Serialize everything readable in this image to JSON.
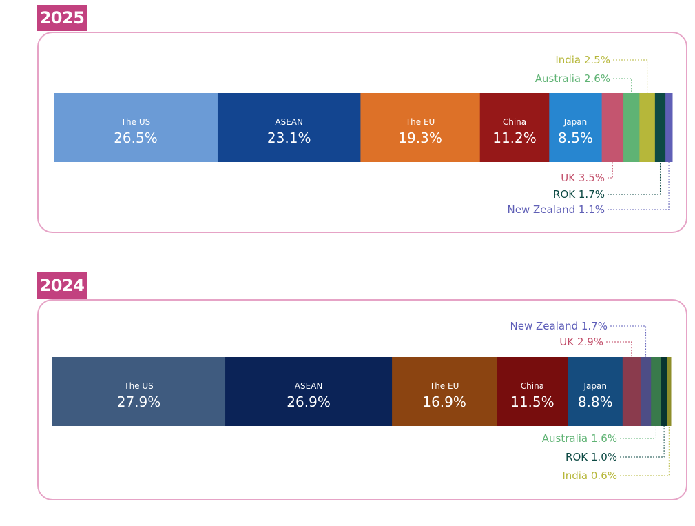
{
  "colors": {
    "accent": "#c2417f",
    "border": "#e6a3c6"
  },
  "chart_data": [
    {
      "type": "bar",
      "title": "2025",
      "stacked": true,
      "orientation": "horizontal",
      "unit": "%",
      "series": [
        {
          "name": "The US",
          "value": 26.5,
          "color": "#6b9bd6"
        },
        {
          "name": "ASEAN",
          "value": 23.1,
          "color": "#134590"
        },
        {
          "name": "The EU",
          "value": 19.3,
          "color": "#dd7128"
        },
        {
          "name": "China",
          "value": 11.2,
          "color": "#961818"
        },
        {
          "name": "Japan",
          "value": 8.5,
          "color": "#2786d0"
        },
        {
          "name": "UK",
          "value": 3.5,
          "color": "#c4556f"
        },
        {
          "name": "Australia",
          "value": 2.6,
          "color": "#5fb374"
        },
        {
          "name": "India",
          "value": 2.5,
          "color": "#b6b73a"
        },
        {
          "name": "ROK",
          "value": 1.7,
          "color": "#0d4a44"
        },
        {
          "name": "New Zealand",
          "value": 1.1,
          "color": "#5f5fb6"
        }
      ]
    },
    {
      "type": "bar",
      "title": "2024",
      "stacked": true,
      "orientation": "horizontal",
      "unit": "%",
      "series": [
        {
          "name": "The US",
          "value": 27.9,
          "color": "#3f5b7f"
        },
        {
          "name": "ASEAN",
          "value": 26.9,
          "color": "#0b2357"
        },
        {
          "name": "The EU",
          "value": 16.9,
          "color": "#8b4411"
        },
        {
          "name": "China",
          "value": 11.5,
          "color": "#770d0d"
        },
        {
          "name": "Japan",
          "value": 8.8,
          "color": "#154c7e"
        },
        {
          "name": "UK",
          "value": 2.9,
          "color": "#8a3b4d"
        },
        {
          "name": "New Zealand",
          "value": 1.7,
          "color": "#4d4d86"
        },
        {
          "name": "Australia",
          "value": 1.6,
          "color": "#397a4b"
        },
        {
          "name": "ROK",
          "value": 1.0,
          "color": "#073430"
        },
        {
          "name": "India",
          "value": 0.6,
          "color": "#8e8e2a"
        }
      ]
    }
  ]
}
